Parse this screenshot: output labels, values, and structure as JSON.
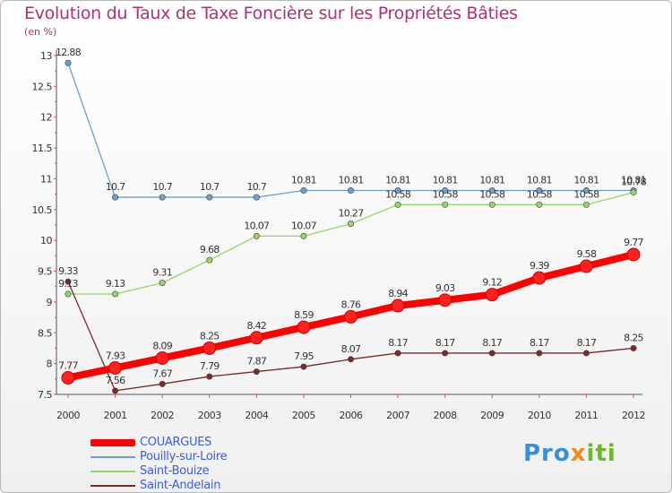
{
  "chart_data": {
    "type": "line",
    "title": "Evolution du Taux de Taxe Foncière sur les Propriétés Bâties",
    "unit_label": "(en %)",
    "xlabel": "",
    "ylabel": "",
    "ylim": [
      7.5,
      13
    ],
    "yticks": [
      "7.5",
      "8",
      "8.5",
      "9",
      "9.5",
      "10",
      "10.5",
      "11",
      "11.5",
      "12",
      "12.5",
      "13"
    ],
    "x": [
      "2000",
      "2001",
      "2002",
      "2003",
      "2004",
      "2005",
      "2006",
      "2007",
      "2008",
      "2009",
      "2010",
      "2011",
      "2012"
    ],
    "grid": false,
    "legend_position": "bottom-left",
    "series": [
      {
        "name": "COUARGUES",
        "color": "#ff0000",
        "values": [
          7.77,
          7.93,
          8.09,
          8.25,
          8.42,
          8.59,
          8.76,
          8.94,
          9.03,
          9.12,
          9.39,
          9.58,
          9.77
        ],
        "labels": [
          "7.77",
          "7.93",
          "8.09",
          "8.25",
          "8.42",
          "8.59",
          "8.76",
          "8.94",
          "9.03",
          "9.12",
          "9.39",
          "9.58",
          "9.77"
        ]
      },
      {
        "name": "Pouilly-sur-Loire",
        "color": "#6d9fd1",
        "values": [
          12.88,
          10.7,
          10.7,
          10.7,
          10.7,
          10.81,
          10.81,
          10.81,
          10.81,
          10.81,
          10.81,
          10.81,
          10.81
        ],
        "labels": [
          "12.88",
          "10.7",
          "10.7",
          "10.7",
          "10.7",
          "10.81",
          "10.81",
          "10.81",
          "10.81",
          "10.81",
          "10.81",
          "10.81",
          "10.81"
        ]
      },
      {
        "name": "Saint-Bouize",
        "color": "#99d466",
        "values": [
          9.13,
          9.13,
          9.31,
          9.68,
          10.07,
          10.07,
          10.27,
          10.58,
          10.58,
          10.58,
          10.58,
          10.58,
          10.78
        ],
        "labels": [
          "9.13",
          "9.13",
          "9.31",
          "9.68",
          "10.07",
          "10.07",
          "10.27",
          "10.58",
          "10.58",
          "10.58",
          "10.58",
          "10.58",
          "10.78"
        ]
      },
      {
        "name": "Saint-Andelain",
        "color": "#7a2a2a",
        "values": [
          9.33,
          7.56,
          7.67,
          7.79,
          7.87,
          7.95,
          8.07,
          8.17,
          8.17,
          8.17,
          8.17,
          8.17,
          8.25
        ],
        "labels": [
          "9.33",
          "7.56",
          "7.67",
          "7.79",
          "7.87",
          "7.95",
          "8.07",
          "8.17",
          "8.17",
          "8.17",
          "8.17",
          "8.17",
          "8.25"
        ]
      }
    ]
  },
  "logo": {
    "p1": "Pro",
    "p2": "x",
    "p3": "iti"
  },
  "colors": {
    "title": "#b03070",
    "axis": "#555555",
    "tick_mark": "#e05050"
  }
}
